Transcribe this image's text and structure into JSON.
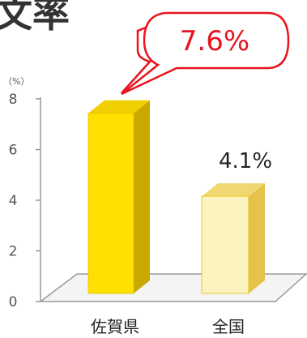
{
  "chart_data": {
    "type": "bar",
    "title": "",
    "title_fragment": "文率",
    "unit_label": "（%）",
    "categories": [
      "佐賀県",
      "全国"
    ],
    "values": [
      7.6,
      4.1
    ],
    "data_labels": [
      "7.6%",
      "4.1%"
    ],
    "highlight_label": "7.6%",
    "yticks": [
      "0",
      "2",
      "4",
      "6",
      "8"
    ],
    "ylim": [
      0,
      8
    ],
    "grid": false,
    "colors": {
      "bar1_front": "#ffe000",
      "bar1_side": "#c9a800",
      "bar1_top": "#f0d000",
      "bar2_front": "#fdf3c0",
      "bar2_side": "#e6c24a",
      "bar2_top": "#f0d770",
      "callout_stroke": "#e8141e",
      "axis": "#999999"
    }
  }
}
